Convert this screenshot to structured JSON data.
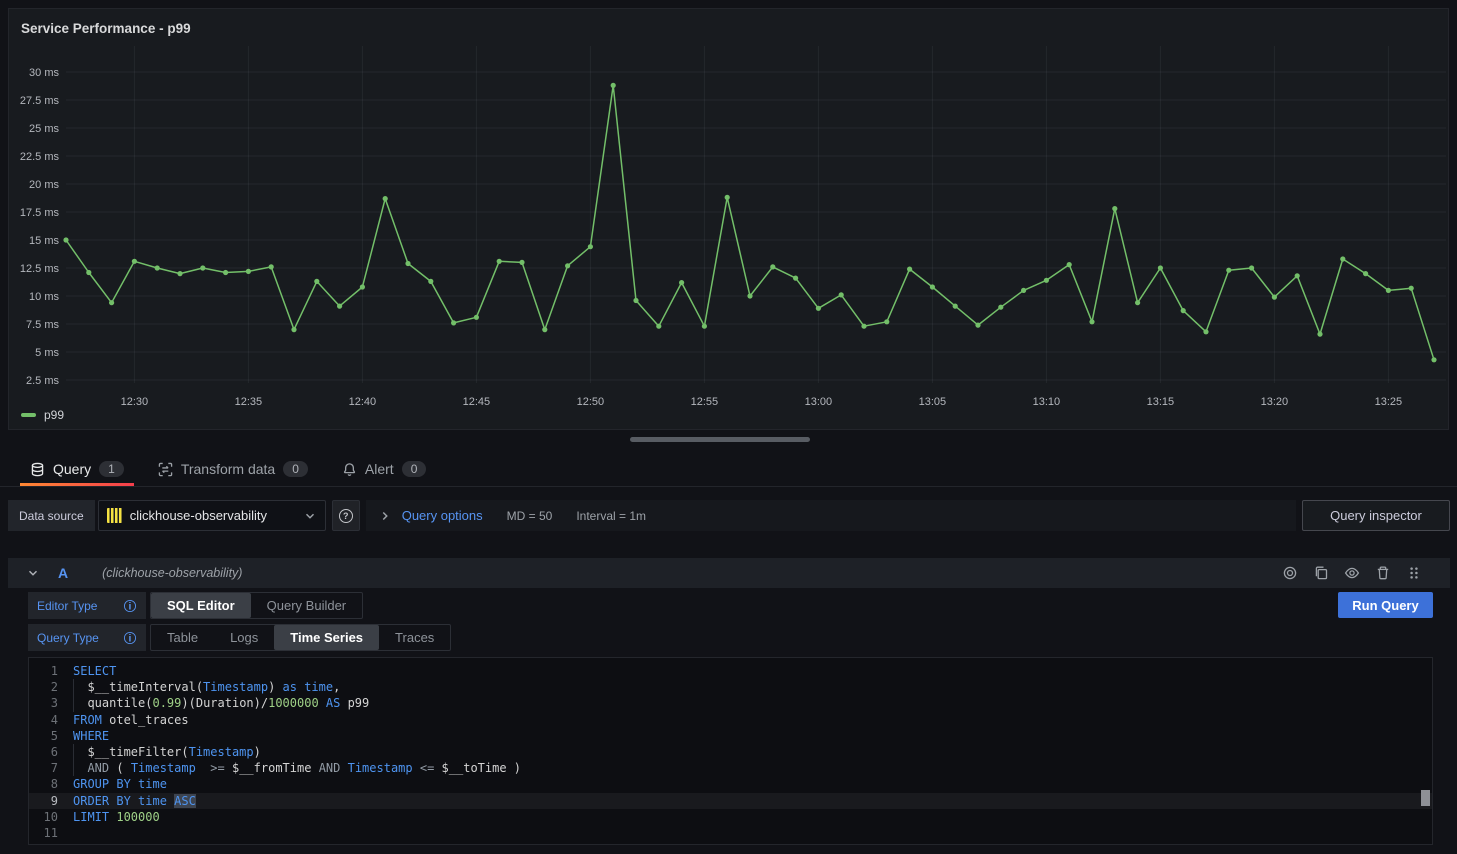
{
  "panel": {
    "title": "Service Performance - p99",
    "legend": {
      "label": "p99",
      "color": "#73bf69"
    }
  },
  "chart_data": {
    "type": "line",
    "title": "Service Performance - p99",
    "x": [
      "12:27",
      "12:28",
      "12:29",
      "12:30",
      "12:31",
      "12:32",
      "12:33",
      "12:34",
      "12:35",
      "12:36",
      "12:37",
      "12:38",
      "12:39",
      "12:40",
      "12:41",
      "12:42",
      "12:43",
      "12:44",
      "12:45",
      "12:46",
      "12:47",
      "12:48",
      "12:49",
      "12:50",
      "12:51",
      "12:52",
      "12:53",
      "12:54",
      "12:55",
      "12:56",
      "12:57",
      "12:58",
      "12:59",
      "13:00",
      "13:01",
      "13:02",
      "13:03",
      "13:04",
      "13:05",
      "13:06",
      "13:07",
      "13:08",
      "13:09",
      "13:10",
      "13:11",
      "13:12",
      "13:13",
      "13:14",
      "13:15",
      "13:16",
      "13:17",
      "13:18",
      "13:19",
      "13:20",
      "13:21",
      "13:22",
      "13:23",
      "13:24",
      "13:25",
      "13:26",
      "13:27"
    ],
    "series": [
      {
        "name": "p99",
        "color": "#73bf69",
        "values": [
          15.0,
          12.1,
          9.4,
          13.1,
          12.5,
          12.0,
          12.5,
          12.1,
          12.2,
          12.6,
          7.0,
          11.3,
          9.1,
          10.8,
          18.7,
          12.9,
          11.3,
          7.6,
          8.1,
          13.1,
          13.0,
          7.0,
          12.7,
          14.4,
          28.8,
          9.6,
          7.3,
          11.2,
          7.3,
          18.8,
          10.0,
          12.6,
          11.6,
          8.9,
          10.1,
          7.3,
          7.7,
          12.4,
          10.8,
          9.1,
          7.4,
          9.0,
          10.5,
          11.4,
          12.8,
          7.7,
          17.8,
          9.4,
          12.5,
          8.7,
          6.8,
          12.3,
          12.5,
          9.9,
          11.8,
          6.6,
          13.3,
          12.0,
          10.5,
          10.7,
          4.3
        ]
      }
    ],
    "x_tick_labels": [
      "12:30",
      "12:35",
      "12:40",
      "12:45",
      "12:50",
      "12:55",
      "13:00",
      "13:05",
      "13:10",
      "13:15",
      "13:20",
      "13:25"
    ],
    "y_ticks": [
      2.5,
      5,
      7.5,
      10,
      12.5,
      15,
      17.5,
      20,
      22.5,
      25,
      27.5,
      30
    ],
    "y_tick_labels": [
      "2.5 ms",
      "5 ms",
      "7.5 ms",
      "10 ms",
      "12.5 ms",
      "15 ms",
      "17.5 ms",
      "20 ms",
      "22.5 ms",
      "25 ms",
      "27.5 ms",
      "30 ms"
    ],
    "y_unit": "ms",
    "ylim": [
      2.5,
      30
    ],
    "grid": true,
    "legend_position": "bottom-left"
  },
  "tabs": [
    {
      "icon": "database-icon",
      "label": "Query",
      "badge": "1",
      "active": true
    },
    {
      "icon": "transform-icon",
      "label": "Transform data",
      "badge": "0",
      "active": false
    },
    {
      "icon": "bell-icon",
      "label": "Alert",
      "badge": "0",
      "active": false
    }
  ],
  "datasource_bar": {
    "label": "Data source",
    "value": "clickhouse-observability",
    "query_options_label": "Query options",
    "md": "MD = 50",
    "interval": "Interval = 1m",
    "query_inspector_label": "Query inspector",
    "help_glyph": "?"
  },
  "query_row": {
    "ref_id": "A",
    "hint": "(clickhouse-observability)",
    "actions": [
      {
        "name": "disable-query-icon",
        "icon": "record-circle-icon"
      },
      {
        "name": "duplicate-query-icon",
        "icon": "copy-icon"
      },
      {
        "name": "hide-response-icon",
        "icon": "eye-icon"
      },
      {
        "name": "delete-query-icon",
        "icon": "trash-icon"
      },
      {
        "name": "drag-handle-icon",
        "icon": "grip-icon"
      }
    ],
    "editor_type_label": "Editor Type",
    "query_type_label": "Query Type",
    "info_glyph": "i",
    "editor_type_options": [
      {
        "label": "SQL Editor",
        "active": true
      },
      {
        "label": "Query Builder",
        "active": false
      }
    ],
    "query_type_options": [
      {
        "label": "Table",
        "active": false
      },
      {
        "label": "Logs",
        "active": false
      },
      {
        "label": "Time Series",
        "active": true
      },
      {
        "label": "Traces",
        "active": false
      }
    ],
    "run_query_label": "Run Query"
  },
  "editor": {
    "lines": [
      {
        "n": "1",
        "tokens": [
          {
            "c": "k",
            "t": "SELECT"
          }
        ]
      },
      {
        "n": "2",
        "indent": true,
        "tokens": [
          {
            "c": "i",
            "t": "  $__timeInterval("
          },
          {
            "c": "k",
            "t": "Timestamp"
          },
          {
            "c": "i",
            "t": ") "
          },
          {
            "c": "k",
            "t": "as time"
          },
          {
            "c": "i",
            "t": ","
          }
        ]
      },
      {
        "n": "3",
        "indent": true,
        "tokens": [
          {
            "c": "i",
            "t": "  quantile("
          },
          {
            "c": "n",
            "t": "0.99"
          },
          {
            "c": "i",
            "t": ")(Duration)/"
          },
          {
            "c": "n",
            "t": "1000000"
          },
          {
            "c": "i",
            "t": " "
          },
          {
            "c": "k",
            "t": "AS"
          },
          {
            "c": "i",
            "t": " p99"
          }
        ]
      },
      {
        "n": "4",
        "tokens": [
          {
            "c": "k",
            "t": "FROM"
          },
          {
            "c": "i",
            "t": " otel_traces"
          }
        ]
      },
      {
        "n": "5",
        "tokens": [
          {
            "c": "k",
            "t": "WHERE"
          }
        ]
      },
      {
        "n": "6",
        "indent": true,
        "tokens": [
          {
            "c": "i",
            "t": "  $__timeFilter("
          },
          {
            "c": "k",
            "t": "Timestamp"
          },
          {
            "c": "i",
            "t": ")"
          }
        ]
      },
      {
        "n": "7",
        "indent": true,
        "tokens": [
          {
            "c": "i",
            "t": "  "
          },
          {
            "c": "o",
            "t": "AND"
          },
          {
            "c": "i",
            "t": " ( "
          },
          {
            "c": "k",
            "t": "Timestamp"
          },
          {
            "c": "o",
            "t": "  >= "
          },
          {
            "c": "i",
            "t": "$__fromTime "
          },
          {
            "c": "o",
            "t": "AND"
          },
          {
            "c": "i",
            "t": " "
          },
          {
            "c": "k",
            "t": "Timestamp"
          },
          {
            "c": "o",
            "t": " <= "
          },
          {
            "c": "i",
            "t": "$__toTime )"
          }
        ]
      },
      {
        "n": "8",
        "tokens": [
          {
            "c": "k",
            "t": "GROUP BY time"
          }
        ]
      },
      {
        "n": "9",
        "active": true,
        "tokens": [
          {
            "c": "k",
            "t": "ORDER BY time "
          },
          {
            "c": "k",
            "t": "ASC",
            "sel": true
          }
        ]
      },
      {
        "n": "10",
        "tokens": [
          {
            "c": "k",
            "t": "LIMIT"
          },
          {
            "c": "i",
            "t": " "
          },
          {
            "c": "n",
            "t": "100000"
          }
        ]
      },
      {
        "n": "11",
        "tokens": []
      }
    ]
  }
}
